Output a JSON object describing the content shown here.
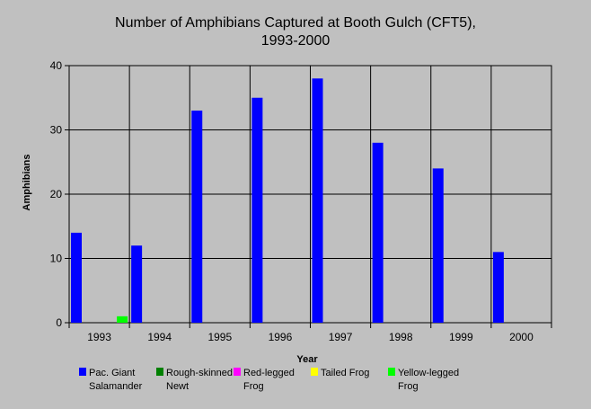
{
  "chart_data": {
    "type": "bar",
    "title": "Number of Amphibians Captured at Booth Gulch (CFT5),",
    "subtitle": "1993-2000",
    "xlabel": "Year",
    "ylabel": "Amphibians",
    "ylim": [
      0,
      40
    ],
    "yticks": [
      0,
      10,
      20,
      30,
      40
    ],
    "categories": [
      "1993",
      "1994",
      "1995",
      "1996",
      "1997",
      "1998",
      "1999",
      "2000"
    ],
    "series": [
      {
        "name": "Pac. Giant Salamander",
        "legend_lines": [
          "Pac. Giant",
          "Salamander"
        ],
        "color": "#0000ff",
        "values": [
          14,
          12,
          33,
          35,
          38,
          28,
          24,
          11
        ]
      },
      {
        "name": "Rough-skinned Newt",
        "legend_lines": [
          "Rough-skinned",
          "Newt"
        ],
        "color": "#008000",
        "values": [
          0,
          0,
          0,
          0,
          0,
          0,
          0,
          0
        ]
      },
      {
        "name": "Red-legged Frog",
        "legend_lines": [
          "Red-legged",
          "Frog"
        ],
        "color": "#ff00ff",
        "values": [
          0,
          0,
          0,
          0,
          0,
          0,
          0,
          0
        ]
      },
      {
        "name": "Tailed Frog",
        "legend_lines": [
          "Tailed Frog"
        ],
        "color": "#ffff00",
        "values": [
          0,
          0,
          0,
          0,
          0,
          0,
          0,
          0
        ]
      },
      {
        "name": "Yellow-legged Frog",
        "legend_lines": [
          "Yellow-legged",
          "Frog"
        ],
        "color": "#00ff00",
        "values": [
          1,
          0,
          0,
          0,
          0,
          0,
          0,
          0
        ]
      }
    ],
    "grid": true,
    "legend_position": "bottom"
  }
}
